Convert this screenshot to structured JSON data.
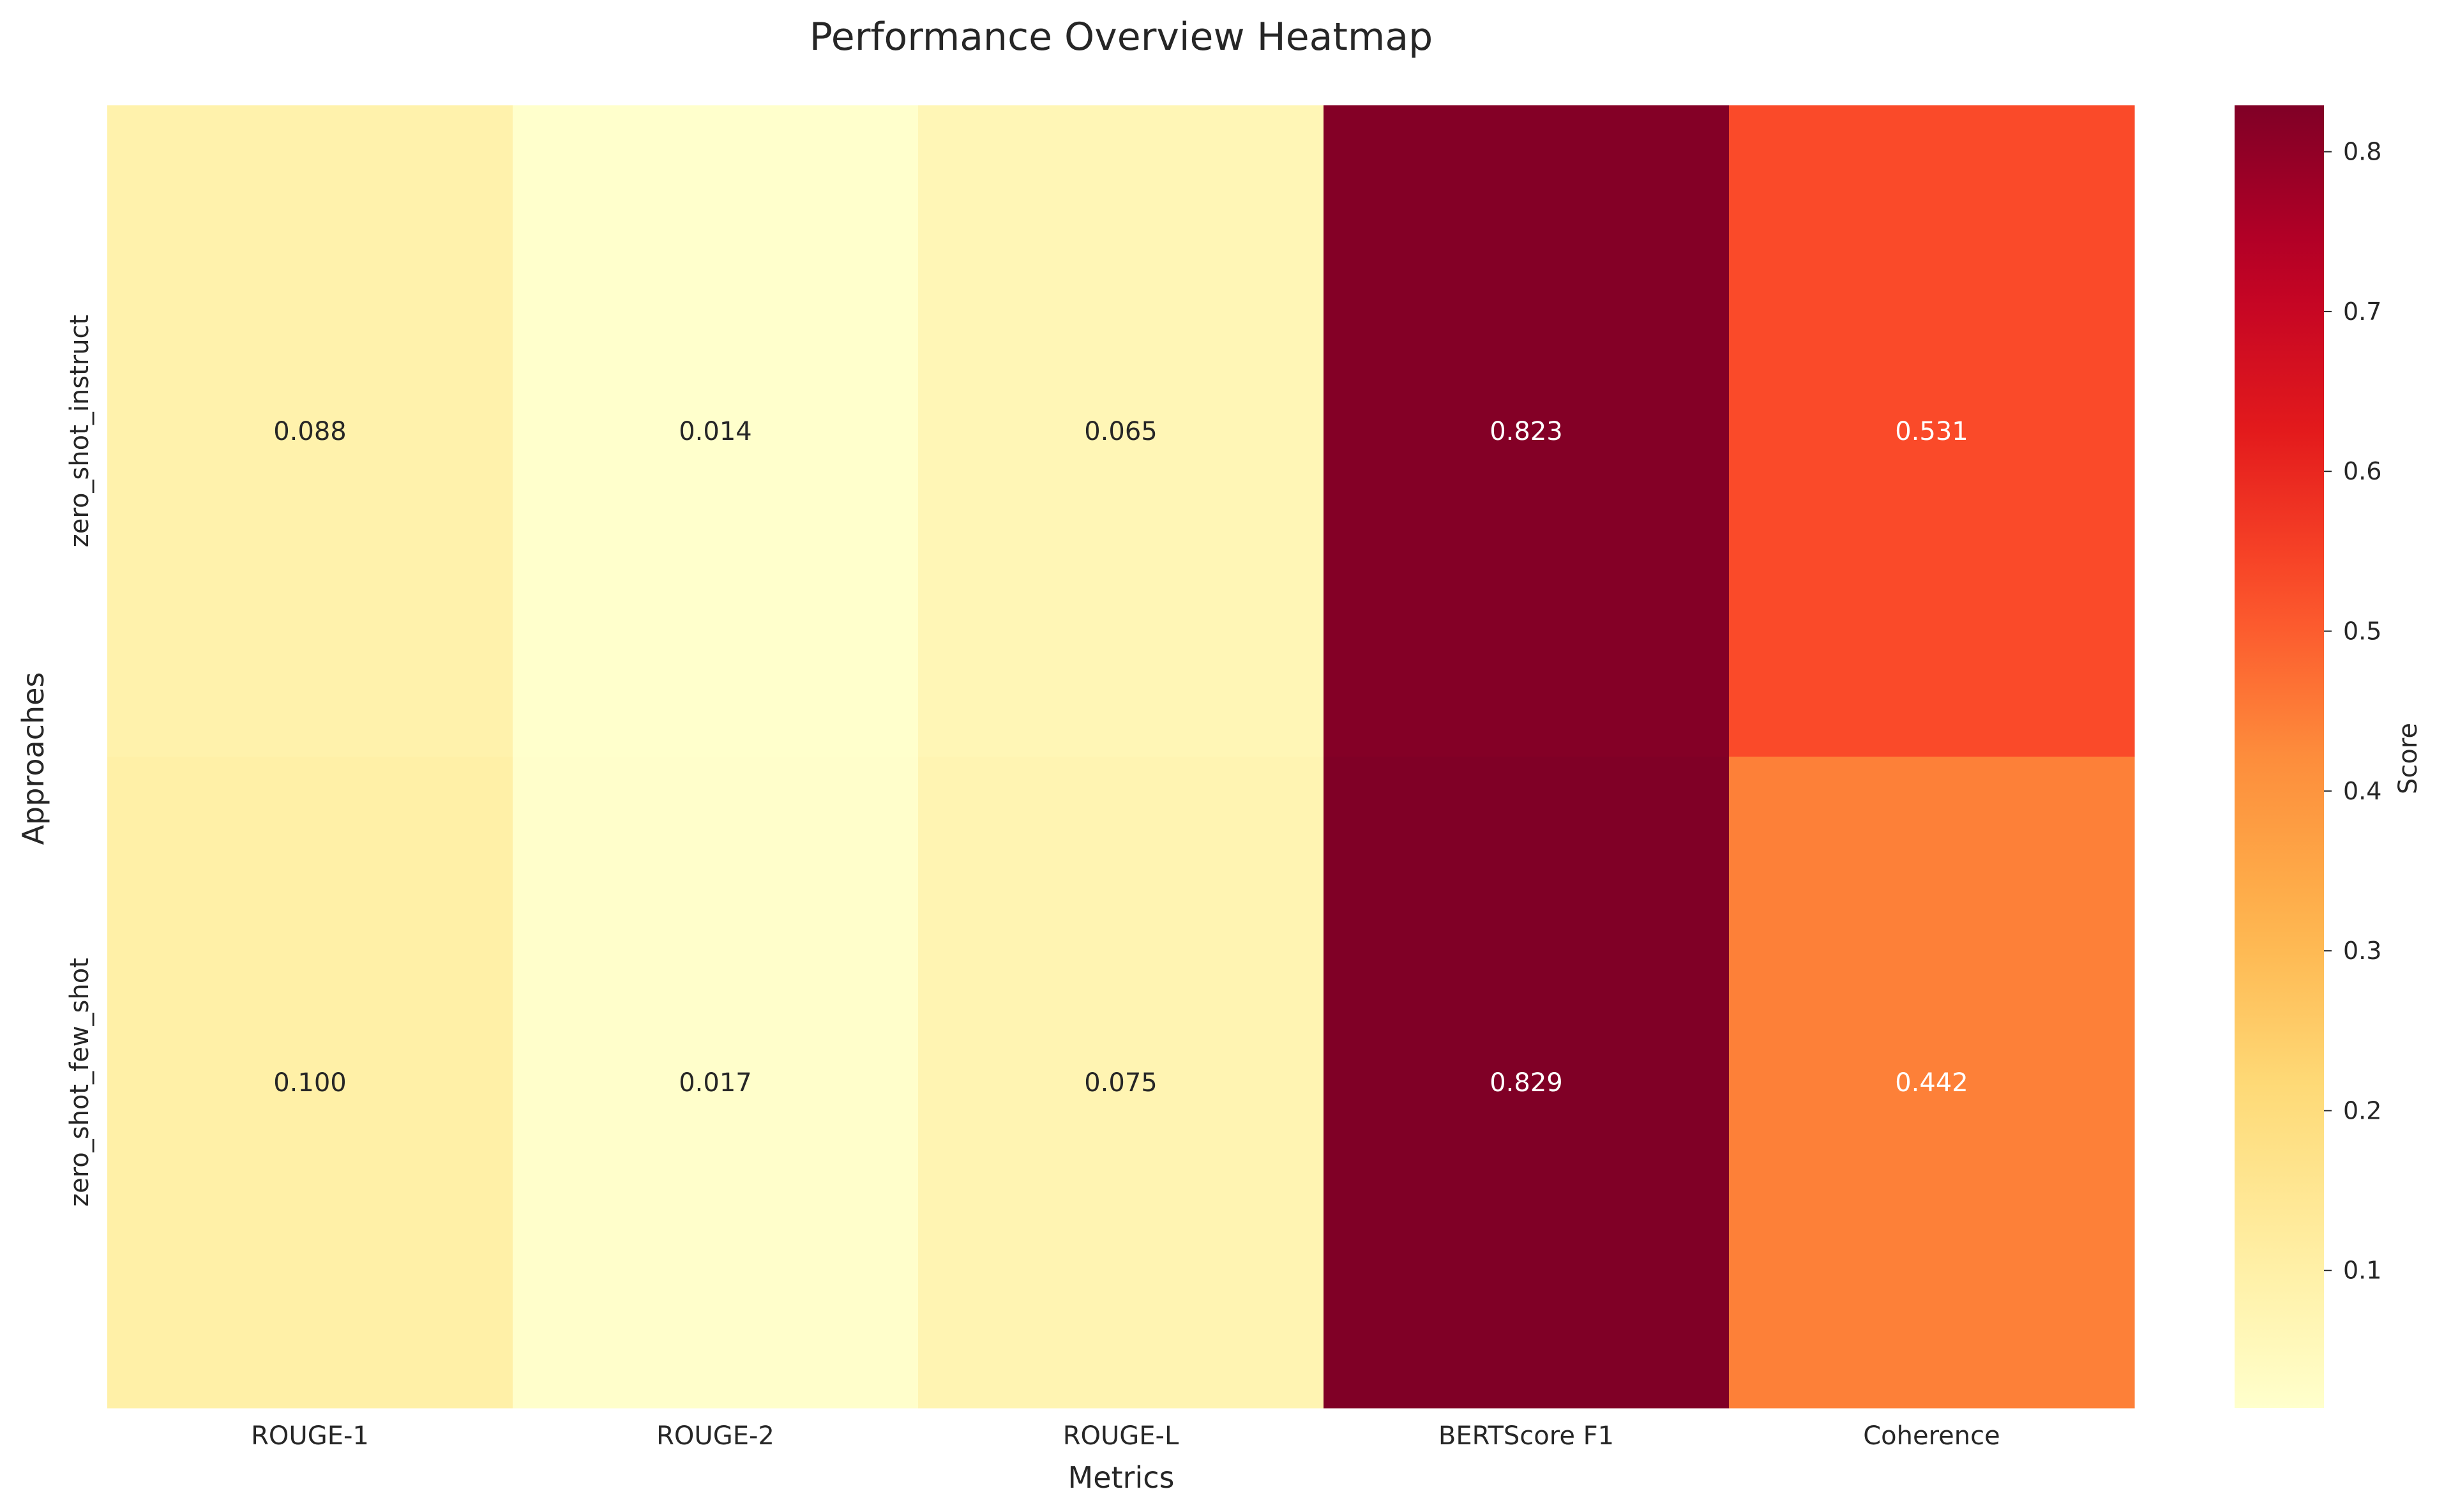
{
  "chart_data": {
    "type": "heatmap",
    "title": "Performance Overview Heatmap",
    "xlabel": "Metrics",
    "ylabel": "Approaches",
    "columns": [
      "ROUGE-1",
      "ROUGE-2",
      "ROUGE-L",
      "BERTScore F1",
      "Coherence"
    ],
    "rows": [
      "zero_shot_instruct",
      "zero_shot_few_shot"
    ],
    "values": [
      [
        0.088,
        0.014,
        0.065,
        0.823,
        0.531
      ],
      [
        0.1,
        0.017,
        0.075,
        0.829,
        0.442
      ]
    ],
    "value_labels": [
      [
        "0.088",
        "0.014",
        "0.065",
        "0.823",
        "0.531"
      ],
      [
        "0.100",
        "0.017",
        "0.075",
        "0.829",
        "0.442"
      ]
    ],
    "colorbar": {
      "label": "Score",
      "colormap": "YlOrRd",
      "vmin": 0.014,
      "vmax": 0.829,
      "ticks": [
        0.1,
        0.2,
        0.3,
        0.4,
        0.5,
        0.6,
        0.7,
        0.8
      ],
      "tick_labels": [
        "0.1",
        "0.2",
        "0.3",
        "0.4",
        "0.5",
        "0.6",
        "0.7",
        "0.8"
      ]
    }
  }
}
